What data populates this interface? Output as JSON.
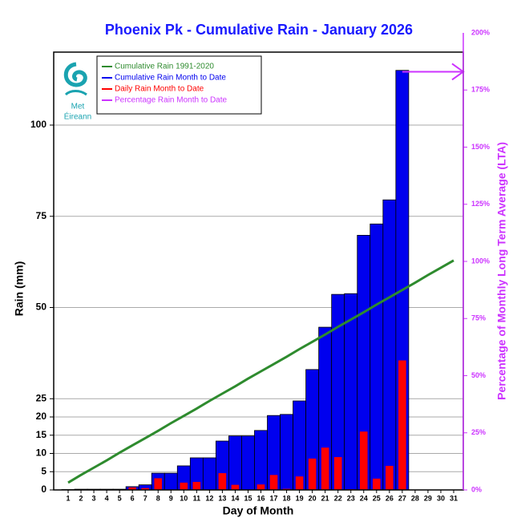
{
  "chart_data": {
    "type": "bar",
    "title": "Phoenix Pk - Cumulative Rain -  January   2026",
    "xlabel": "Day of Month",
    "ylabel": "Rain (mm)",
    "y2label": "Percentage  of Monthly Long Term Average (LTA)",
    "logo_text": [
      "Met",
      "Éireann"
    ],
    "categories": [
      "1",
      "2",
      "3",
      "4",
      "5",
      "6",
      "7",
      "8",
      "9",
      "10",
      "11",
      "12",
      "13",
      "14",
      "15",
      "16",
      "17",
      "18",
      "19",
      "20",
      "21",
      "22",
      "23",
      "24",
      "25",
      "26",
      "27",
      "28",
      "29",
      "30",
      "31"
    ],
    "ylim": [
      0,
      120
    ],
    "yticks": [
      0,
      5,
      10,
      15,
      20,
      25,
      50,
      75,
      100
    ],
    "y2lim": [
      0,
      200
    ],
    "y2ticks": [
      {
        "value": 0,
        "label": "0%"
      },
      {
        "value": 25,
        "label": "25%"
      },
      {
        "value": 50,
        "label": "50%"
      },
      {
        "value": 75,
        "label": "75%"
      },
      {
        "value": 100,
        "label": "100%"
      },
      {
        "value": 125,
        "label": "125%"
      },
      {
        "value": 150,
        "label": "150%"
      },
      {
        "value": 175,
        "label": "175%"
      },
      {
        "value": 200,
        "label": "200%"
      }
    ],
    "grid": true,
    "series": [
      {
        "name": "Cumulative Rain 1991-2020",
        "color": "#2e8b2e",
        "type": "line",
        "values": [
          2.0,
          4.1,
          6.1,
          8.1,
          10.2,
          12.2,
          14.2,
          16.2,
          18.3,
          20.3,
          22.3,
          24.4,
          26.4,
          28.4,
          30.5,
          32.5,
          34.5,
          36.5,
          38.6,
          40.6,
          42.6,
          44.7,
          46.7,
          48.7,
          50.8,
          52.8,
          54.8,
          56.8,
          58.9,
          60.9,
          62.9
        ]
      },
      {
        "name": "Cumulative Rain Month to Date",
        "color": "#0000ee",
        "type": "bar",
        "values": [
          0.1,
          0.2,
          0.2,
          0.2,
          0.2,
          0.9,
          1.4,
          4.6,
          4.6,
          6.6,
          8.8,
          8.8,
          13.4,
          14.8,
          14.8,
          16.3,
          20.4,
          20.7,
          24.4,
          33.0,
          44.6,
          53.6,
          53.8,
          69.8,
          72.9,
          79.5,
          115,
          null,
          null,
          null,
          null
        ]
      },
      {
        "name": "Daily Rain Month to Date",
        "color": "#ff0000",
        "type": "narrowbar",
        "values": [
          0.1,
          0.1,
          0,
          0,
          0,
          0.7,
          0.5,
          3.2,
          0,
          2.0,
          2.2,
          0,
          4.6,
          1.4,
          0,
          1.5,
          4.1,
          0.3,
          3.7,
          8.6,
          11.6,
          9.0,
          0.2,
          16.0,
          3.1,
          6.6,
          35.5,
          null,
          null,
          null,
          null
        ]
      },
      {
        "name": "Percentage Rain Month to Date",
        "color": "#cc33ff",
        "type": "arrow",
        "axis": "y2",
        "values": [
          null,
          null,
          null,
          null,
          null,
          null,
          null,
          null,
          null,
          null,
          null,
          null,
          null,
          null,
          null,
          null,
          null,
          null,
          null,
          null,
          null,
          null,
          null,
          null,
          null,
          null,
          183,
          null,
          null,
          null,
          null
        ]
      }
    ]
  }
}
